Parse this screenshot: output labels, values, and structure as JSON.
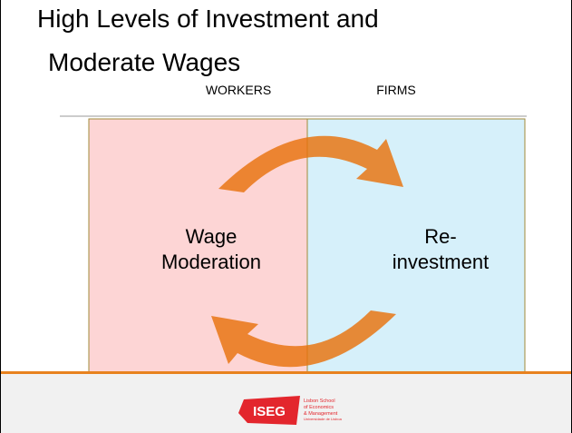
{
  "slide": {
    "title_lines": [
      "High Levels of Investment and",
      "Moderate Wages"
    ],
    "columns": [
      "WORKERS",
      "FIRMS"
    ],
    "left_box": {
      "lines": [
        "Wage",
        "Moderation"
      ]
    },
    "right_box": {
      "lines": [
        "Re-",
        "investment"
      ]
    },
    "logo": {
      "mark": "ISEG",
      "lines": [
        "Lisbon School",
        "of Economics",
        "& Management",
        "Universidade de Lisboa"
      ]
    }
  }
}
